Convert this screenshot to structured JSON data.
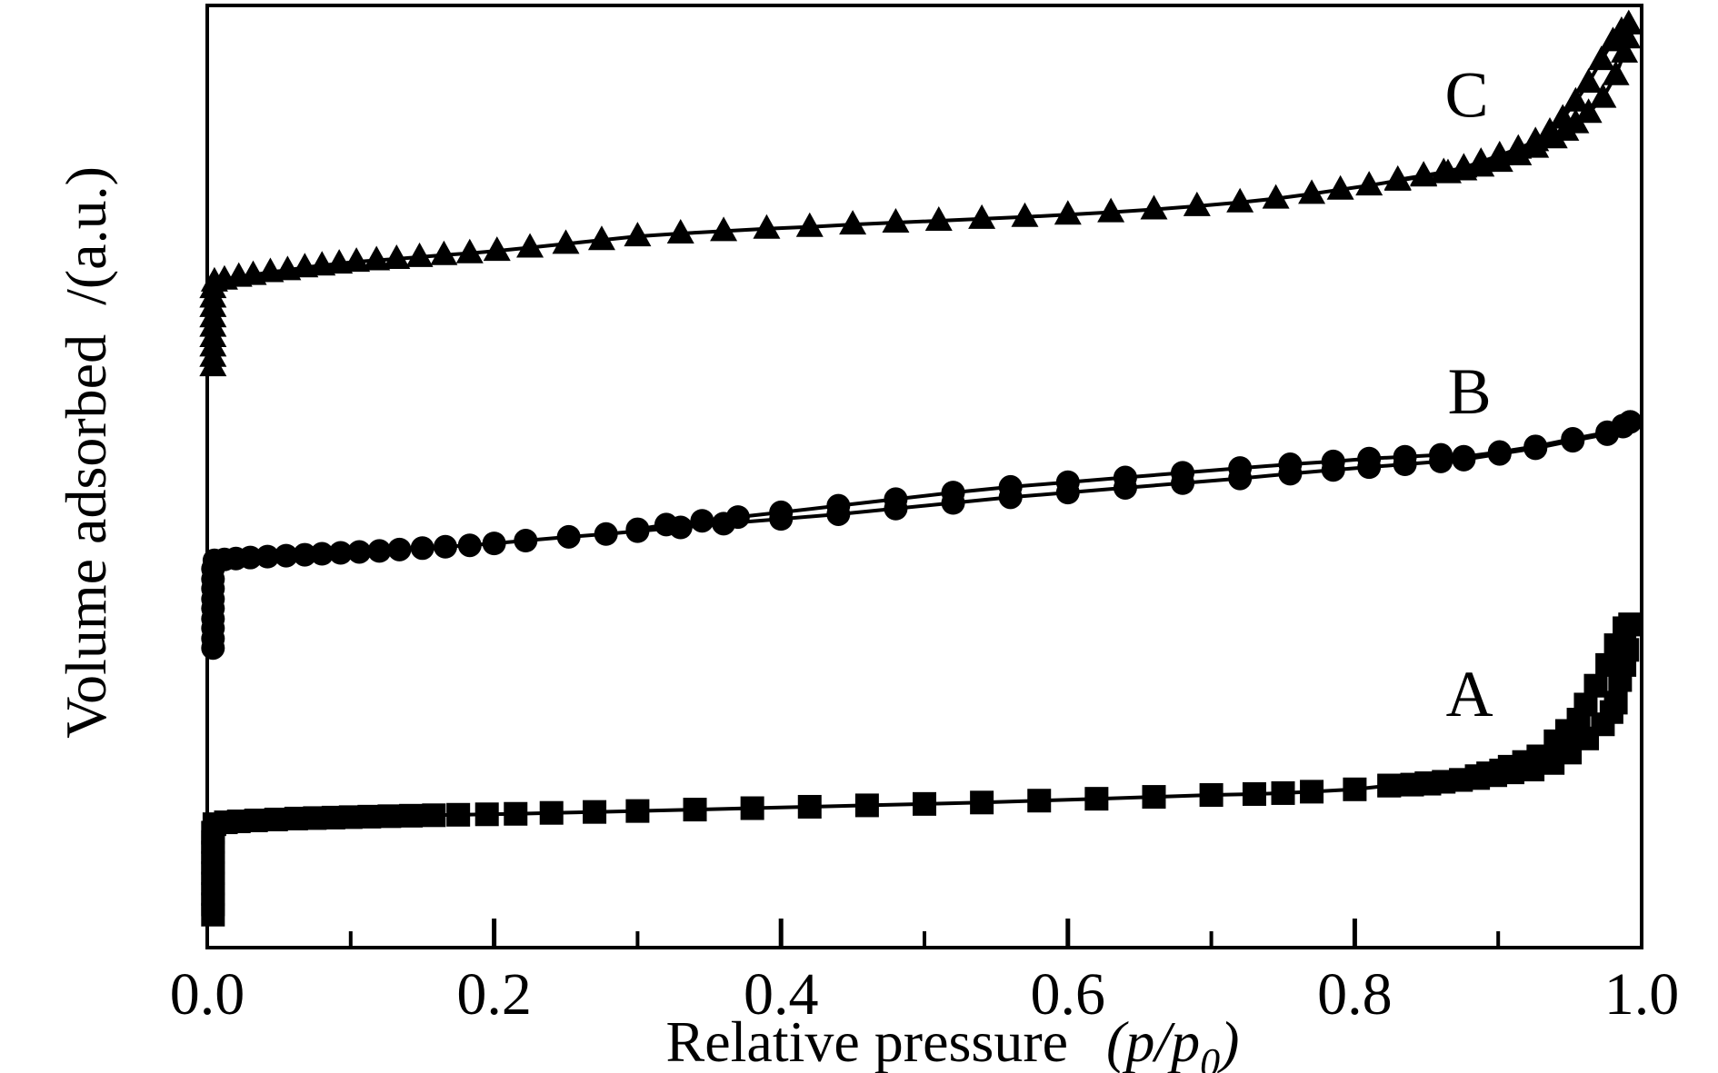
{
  "figure": {
    "background": "#ffffff",
    "foreground": "#000000"
  },
  "chart_data": {
    "type": "line",
    "title": "",
    "xlabel": "Relative pressure",
    "xlabel_math_open": "(p/p",
    "xlabel_math_sub": "0",
    "xlabel_math_close": ")",
    "ylabel": "Volume adsorbed  /(a.u.)",
    "xlim": [
      0.0,
      1.0
    ],
    "ylim": [
      0,
      100
    ],
    "y_units": "arbitrary units (a.u.), unlabeled axis",
    "grid": false,
    "legend": "none (curves labeled A, B, C in-plot)",
    "ticks": {
      "major": [
        0.2,
        0.4,
        0.6,
        0.8
      ],
      "minor": [
        0.1,
        0.3,
        0.5,
        0.7,
        0.9
      ],
      "labels": [
        {
          "value": 0.0,
          "text": "0.0"
        },
        {
          "value": 0.2,
          "text": "0.2"
        },
        {
          "value": 0.4,
          "text": "0.4"
        },
        {
          "value": 0.6,
          "text": "0.6"
        },
        {
          "value": 0.8,
          "text": "0.8"
        },
        {
          "value": 1.0,
          "text": "1.0"
        }
      ]
    },
    "series": [
      {
        "name": "A",
        "label": "A",
        "marker": "square",
        "label_pos": {
          "x": 0.88,
          "y": 27.0
        },
        "adsorption": [
          [
            0.004,
            3.5
          ],
          [
            0.004,
            4.6
          ],
          [
            0.004,
            5.7
          ],
          [
            0.004,
            6.8
          ],
          [
            0.004,
            7.9
          ],
          [
            0.004,
            9.0
          ],
          [
            0.004,
            10.1
          ],
          [
            0.004,
            11.2
          ],
          [
            0.004,
            12.2
          ],
          [
            0.005,
            13.1
          ],
          [
            0.013,
            13.3
          ],
          [
            0.022,
            13.4
          ],
          [
            0.034,
            13.5
          ],
          [
            0.048,
            13.6
          ],
          [
            0.062,
            13.7
          ],
          [
            0.075,
            13.75
          ],
          [
            0.088,
            13.8
          ],
          [
            0.1,
            13.85
          ],
          [
            0.113,
            13.9
          ],
          [
            0.127,
            13.95
          ],
          [
            0.142,
            14.0
          ],
          [
            0.158,
            14.05
          ],
          [
            0.175,
            14.1
          ],
          [
            0.195,
            14.15
          ],
          [
            0.215,
            14.2
          ],
          [
            0.24,
            14.3
          ],
          [
            0.27,
            14.4
          ],
          [
            0.3,
            14.5
          ],
          [
            0.34,
            14.65
          ],
          [
            0.38,
            14.8
          ],
          [
            0.42,
            14.95
          ],
          [
            0.46,
            15.1
          ],
          [
            0.5,
            15.25
          ],
          [
            0.54,
            15.4
          ],
          [
            0.58,
            15.6
          ],
          [
            0.62,
            15.8
          ],
          [
            0.66,
            16.0
          ],
          [
            0.7,
            16.2
          ],
          [
            0.73,
            16.3
          ],
          [
            0.75,
            16.4
          ],
          [
            0.77,
            16.55
          ],
          [
            0.8,
            16.8
          ],
          [
            0.824,
            17.2
          ],
          [
            0.852,
            17.4
          ],
          [
            0.874,
            17.8
          ],
          [
            0.886,
            18.0
          ],
          [
            0.898,
            18.3
          ],
          [
            0.91,
            18.6
          ],
          [
            0.924,
            18.9
          ],
          [
            0.938,
            19.6
          ],
          [
            0.95,
            20.7
          ],
          [
            0.962,
            22.2
          ],
          [
            0.973,
            23.7
          ],
          [
            0.979,
            25.0
          ],
          [
            0.982,
            26.0
          ],
          [
            0.985,
            28.4
          ],
          [
            0.988,
            30.0
          ],
          [
            0.99,
            31.6
          ],
          [
            0.992,
            34.3
          ]
        ],
        "desorption": [
          [
            0.992,
            34.3
          ],
          [
            0.988,
            33.9
          ],
          [
            0.982,
            32.1
          ],
          [
            0.976,
            30.0
          ],
          [
            0.968,
            27.8
          ],
          [
            0.961,
            25.8
          ],
          [
            0.956,
            24.2
          ],
          [
            0.948,
            23.0
          ],
          [
            0.94,
            21.9
          ],
          [
            0.928,
            20.3
          ],
          [
            0.918,
            19.7
          ],
          [
            0.908,
            19.2
          ],
          [
            0.902,
            18.8
          ],
          [
            0.893,
            18.5
          ],
          [
            0.885,
            18.2
          ],
          [
            0.874,
            17.8
          ],
          [
            0.862,
            17.6
          ],
          [
            0.85,
            17.45
          ],
          [
            0.84,
            17.3
          ],
          [
            0.824,
            17.2
          ]
        ]
      },
      {
        "name": "B",
        "label": "B",
        "marker": "circle",
        "label_pos": {
          "x": 0.88,
          "y": 59.1
        },
        "adsorption": [
          [
            0.004,
            31.8
          ],
          [
            0.004,
            32.8
          ],
          [
            0.004,
            33.9
          ],
          [
            0.004,
            34.9
          ],
          [
            0.004,
            36.0
          ],
          [
            0.004,
            37.0
          ],
          [
            0.004,
            38.1
          ],
          [
            0.004,
            39.1
          ],
          [
            0.004,
            40.2
          ],
          [
            0.005,
            41.1
          ],
          [
            0.012,
            41.2
          ],
          [
            0.02,
            41.3
          ],
          [
            0.03,
            41.4
          ],
          [
            0.042,
            41.5
          ],
          [
            0.055,
            41.6
          ],
          [
            0.068,
            41.7
          ],
          [
            0.08,
            41.8
          ],
          [
            0.093,
            41.9
          ],
          [
            0.106,
            42.0
          ],
          [
            0.12,
            42.1
          ],
          [
            0.134,
            42.25
          ],
          [
            0.15,
            42.4
          ],
          [
            0.166,
            42.55
          ],
          [
            0.183,
            42.7
          ],
          [
            0.2,
            42.9
          ],
          [
            0.222,
            43.2
          ],
          [
            0.252,
            43.6
          ],
          [
            0.278,
            43.9
          ],
          [
            0.3,
            44.2
          ],
          [
            0.33,
            44.6
          ],
          [
            0.36,
            45.0
          ],
          [
            0.4,
            45.5
          ],
          [
            0.44,
            46.0
          ],
          [
            0.48,
            46.6
          ],
          [
            0.52,
            47.2
          ],
          [
            0.56,
            47.8
          ],
          [
            0.6,
            48.3
          ],
          [
            0.64,
            48.8
          ],
          [
            0.68,
            49.3
          ],
          [
            0.72,
            49.8
          ],
          [
            0.755,
            50.3
          ],
          [
            0.785,
            50.7
          ],
          [
            0.81,
            51.0
          ],
          [
            0.835,
            51.3
          ],
          [
            0.86,
            51.6
          ],
          [
            0.876,
            51.8
          ],
          [
            0.901,
            52.4
          ],
          [
            0.926,
            53.0
          ],
          [
            0.952,
            53.8
          ],
          [
            0.976,
            54.5
          ],
          [
            0.987,
            55.3
          ],
          [
            0.992,
            55.8
          ]
        ],
        "desorption": [
          [
            0.992,
            55.8
          ],
          [
            0.987,
            55.4
          ],
          [
            0.976,
            54.7
          ],
          [
            0.952,
            54.0
          ],
          [
            0.926,
            53.2
          ],
          [
            0.901,
            52.6
          ],
          [
            0.876,
            52.1
          ],
          [
            0.86,
            52.3
          ],
          [
            0.835,
            52.1
          ],
          [
            0.81,
            51.9
          ],
          [
            0.785,
            51.6
          ],
          [
            0.755,
            51.3
          ],
          [
            0.72,
            50.9
          ],
          [
            0.68,
            50.4
          ],
          [
            0.64,
            49.9
          ],
          [
            0.6,
            49.4
          ],
          [
            0.56,
            48.9
          ],
          [
            0.52,
            48.3
          ],
          [
            0.48,
            47.6
          ],
          [
            0.44,
            46.9
          ],
          [
            0.4,
            46.2
          ],
          [
            0.37,
            45.7
          ],
          [
            0.345,
            45.3
          ],
          [
            0.32,
            44.9
          ],
          [
            0.3,
            44.4
          ]
        ]
      },
      {
        "name": "C",
        "label": "C",
        "marker": "triangle",
        "label_pos": {
          "x": 0.878,
          "y": 90.6
        },
        "adsorption": [
          [
            0.004,
            61.7
          ],
          [
            0.004,
            62.7
          ],
          [
            0.004,
            63.8
          ],
          [
            0.004,
            64.8
          ],
          [
            0.004,
            65.9
          ],
          [
            0.004,
            66.9
          ],
          [
            0.004,
            68.0
          ],
          [
            0.004,
            69.0
          ],
          [
            0.004,
            70.0
          ],
          [
            0.005,
            70.7
          ],
          [
            0.012,
            70.9
          ],
          [
            0.022,
            71.2
          ],
          [
            0.032,
            71.4
          ],
          [
            0.044,
            71.7
          ],
          [
            0.056,
            71.9
          ],
          [
            0.068,
            72.2
          ],
          [
            0.08,
            72.4
          ],
          [
            0.092,
            72.6
          ],
          [
            0.104,
            72.8
          ],
          [
            0.118,
            72.95
          ],
          [
            0.132,
            73.1
          ],
          [
            0.148,
            73.3
          ],
          [
            0.165,
            73.5
          ],
          [
            0.183,
            73.7
          ],
          [
            0.202,
            73.95
          ],
          [
            0.225,
            74.3
          ],
          [
            0.25,
            74.7
          ],
          [
            0.275,
            75.1
          ],
          [
            0.3,
            75.5
          ],
          [
            0.33,
            75.8
          ],
          [
            0.36,
            76.05
          ],
          [
            0.39,
            76.3
          ],
          [
            0.42,
            76.5
          ],
          [
            0.45,
            76.75
          ],
          [
            0.48,
            76.95
          ],
          [
            0.51,
            77.15
          ],
          [
            0.54,
            77.35
          ],
          [
            0.57,
            77.55
          ],
          [
            0.6,
            77.8
          ],
          [
            0.63,
            78.05
          ],
          [
            0.66,
            78.35
          ],
          [
            0.69,
            78.7
          ],
          [
            0.72,
            79.1
          ],
          [
            0.745,
            79.5
          ],
          [
            0.77,
            80.0
          ],
          [
            0.79,
            80.45
          ],
          [
            0.81,
            80.9
          ],
          [
            0.83,
            81.4
          ],
          [
            0.848,
            81.85
          ],
          [
            0.865,
            82.2
          ],
          [
            0.876,
            82.5
          ],
          [
            0.888,
            82.9
          ],
          [
            0.901,
            83.4
          ],
          [
            0.914,
            84.1
          ],
          [
            0.926,
            84.9
          ],
          [
            0.939,
            85.9
          ],
          [
            0.947,
            86.7
          ],
          [
            0.954,
            87.5
          ],
          [
            0.963,
            88.6
          ],
          [
            0.973,
            90.2
          ],
          [
            0.982,
            92.6
          ],
          [
            0.988,
            95.0
          ],
          [
            0.99,
            96.5
          ],
          [
            0.991,
            98.0
          ]
        ],
        "desorption": [
          [
            0.991,
            98.0
          ],
          [
            0.986,
            97.3
          ],
          [
            0.98,
            96.2
          ],
          [
            0.972,
            94.2
          ],
          [
            0.963,
            91.8
          ],
          [
            0.954,
            89.8
          ],
          [
            0.945,
            88.0
          ],
          [
            0.936,
            86.6
          ],
          [
            0.926,
            85.6
          ],
          [
            0.914,
            84.8
          ],
          [
            0.901,
            84.1
          ],
          [
            0.888,
            83.4
          ],
          [
            0.876,
            82.8
          ],
          [
            0.862,
            82.3
          ],
          [
            0.848,
            81.95
          ],
          [
            0.83,
            81.5
          ]
        ]
      }
    ]
  }
}
